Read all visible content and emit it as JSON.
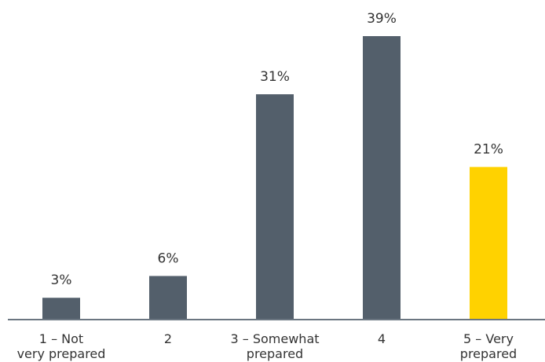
{
  "chart_data": {
    "type": "bar",
    "categories": [
      [
        "1 – Not",
        "very prepared"
      ],
      [
        "2"
      ],
      [
        "3 – Somewhat",
        "prepared"
      ],
      [
        "4"
      ],
      [
        "5 – Very",
        "prepared"
      ]
    ],
    "values": [
      3,
      6,
      31,
      39,
      21
    ],
    "value_labels": [
      "3%",
      "6%",
      "31%",
      "39%",
      "21%"
    ],
    "unit": "%",
    "ylim": [
      0,
      39
    ],
    "grid": false,
    "legend": "none",
    "colors": {
      "bar": "#535f6b",
      "highlight_bar": "#ffd200",
      "highlight_index": 4,
      "axis": "#6b7681",
      "text": "#333333"
    }
  }
}
